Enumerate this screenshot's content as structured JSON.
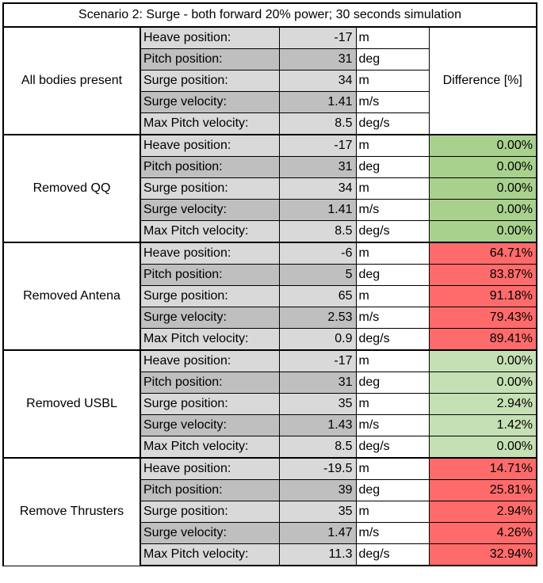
{
  "title": "Scenario 2: Surge - both forward 20% power; 30 seconds simulation",
  "diff_header": "Difference [%]",
  "colors": {
    "match": "#a9d18e",
    "minor": "#c5e0b4",
    "major": "#ff6b6b"
  },
  "groups": [
    {
      "label": "All bodies present",
      "status": "baseline",
      "rows": [
        {
          "param": "Heave position:",
          "value": "-17",
          "unit": "m"
        },
        {
          "param": "Pitch position:",
          "value": "31",
          "unit": "deg"
        },
        {
          "param": "Surge position:",
          "value": "34",
          "unit": "m"
        },
        {
          "param": "Surge velocity:",
          "value": "1.41",
          "unit": "m/s"
        },
        {
          "param": "Max Pitch velocity:",
          "value": "8.5",
          "unit": "deg/s"
        }
      ]
    },
    {
      "label": "Removed QQ",
      "status": "match",
      "rows": [
        {
          "param": "Heave position:",
          "value": "-17",
          "unit": "m",
          "diff": "0.00%"
        },
        {
          "param": "Pitch position:",
          "value": "31",
          "unit": "deg",
          "diff": "0.00%"
        },
        {
          "param": "Surge position:",
          "value": "34",
          "unit": "m",
          "diff": "0.00%"
        },
        {
          "param": "Surge velocity:",
          "value": "1.41",
          "unit": "m/s",
          "diff": "0.00%"
        },
        {
          "param": "Max Pitch velocity:",
          "value": "8.5",
          "unit": "deg/s",
          "diff": "0.00%"
        }
      ]
    },
    {
      "label": "Removed Antena",
      "status": "major",
      "rows": [
        {
          "param": "Heave position:",
          "value": "-6",
          "unit": "m",
          "diff": "64.71%"
        },
        {
          "param": "Pitch position:",
          "value": "5",
          "unit": "deg",
          "diff": "83.87%"
        },
        {
          "param": "Surge position:",
          "value": "65",
          "unit": "m",
          "diff": "91.18%"
        },
        {
          "param": "Surge velocity:",
          "value": "2.53",
          "unit": "m/s",
          "diff": "79.43%"
        },
        {
          "param": "Max Pitch velocity:",
          "value": "0.9",
          "unit": "deg/s",
          "diff": "89.41%"
        }
      ]
    },
    {
      "label": "Removed USBL",
      "status": "minor",
      "rows": [
        {
          "param": "Heave position:",
          "value": "-17",
          "unit": "m",
          "diff": "0.00%"
        },
        {
          "param": "Pitch position:",
          "value": "31",
          "unit": "deg",
          "diff": "0.00%"
        },
        {
          "param": "Surge position:",
          "value": "35",
          "unit": "m",
          "diff": "2.94%"
        },
        {
          "param": "Surge velocity:",
          "value": "1.43",
          "unit": "m/s",
          "diff": "1.42%"
        },
        {
          "param": "Max Pitch velocity:",
          "value": "8.5",
          "unit": "deg/s",
          "diff": "0.00%"
        }
      ]
    },
    {
      "label": "Remove Thrusters",
      "status": "major",
      "rows": [
        {
          "param": "Heave position:",
          "value": "-19.5",
          "unit": "m",
          "diff": "14.71%"
        },
        {
          "param": "Pitch position:",
          "value": "39",
          "unit": "deg",
          "diff": "25.81%"
        },
        {
          "param": "Surge position:",
          "value": "35",
          "unit": "m",
          "diff": "2.94%"
        },
        {
          "param": "Surge velocity:",
          "value": "1.47",
          "unit": "m/s",
          "diff": "4.26%"
        },
        {
          "param": "Max Pitch velocity:",
          "value": "11.3",
          "unit": "deg/s",
          "diff": "32.94%"
        }
      ]
    }
  ]
}
